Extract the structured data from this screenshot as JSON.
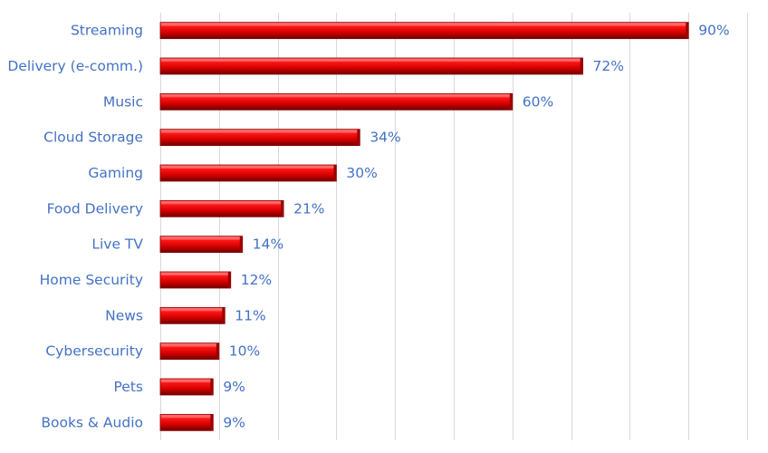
{
  "chart_data": {
    "type": "bar",
    "orientation": "horizontal",
    "categories": [
      "Streaming",
      "Delivery (e-comm.)",
      "Music",
      "Cloud Storage",
      "Gaming",
      "Food Delivery",
      "Live TV",
      "Home Security",
      "News",
      "Cybersecurity",
      "Pets",
      "Books & Audio"
    ],
    "values": [
      90,
      72,
      60,
      34,
      30,
      21,
      14,
      12,
      11,
      10,
      9,
      9
    ],
    "value_labels": [
      "90%",
      "72%",
      "60%",
      "34%",
      "30%",
      "21%",
      "14%",
      "12%",
      "11%",
      "10%",
      "9%",
      "9%"
    ],
    "title": "",
    "xlabel": "",
    "ylabel": "",
    "xlim": [
      0,
      100
    ],
    "grid": true,
    "legend": "none",
    "colors": {
      "bar": "#e00000",
      "bar_dark": "#7a0000",
      "label": "#4472C4",
      "grid": "#d9d9d9"
    }
  }
}
